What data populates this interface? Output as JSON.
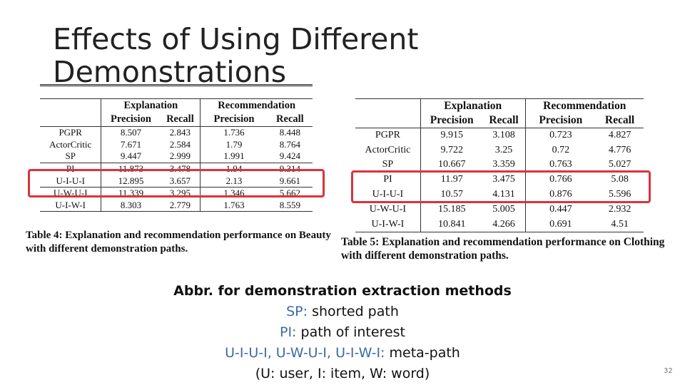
{
  "slide": {
    "title_line1": "Effects of Using Different",
    "title_line2": "Demonstrations",
    "page_number": "32"
  },
  "table_beauty": {
    "group_headers": [
      "Explanation",
      "Recommendation"
    ],
    "sub_headers": [
      "Precision",
      "Recall",
      "Precision",
      "Recall"
    ],
    "rows": [
      {
        "method": "PGPR",
        "values": [
          "8.507",
          "2.843",
          "1.736",
          "8.448"
        ]
      },
      {
        "method": "ActorCritic",
        "values": [
          "7.671",
          "2.584",
          "1.79",
          "8.764"
        ]
      },
      {
        "method": "SP",
        "values": [
          "9.447",
          "2.999",
          "1.991",
          "9.424"
        ]
      },
      {
        "method": "PI",
        "values": [
          "11.873",
          "3.478",
          "1.94",
          "9.314"
        ]
      },
      {
        "method": "U-I-U-I",
        "values": [
          "12.895",
          "3.657",
          "2.13",
          "9.661"
        ]
      },
      {
        "method": "U-W-U-I",
        "values": [
          "11.339",
          "3.295",
          "1.346",
          "5.662"
        ]
      },
      {
        "method": "U-I-W-I",
        "values": [
          "8.303",
          "2.779",
          "1.763",
          "8.559"
        ]
      }
    ],
    "caption": "Table 4: Explanation and recommendation performance on Beauty with different demonstration paths."
  },
  "table_clothing": {
    "group_headers": [
      "Explanation",
      "Recommendation"
    ],
    "sub_headers": [
      "Precision",
      "Recall",
      "Precision",
      "Recall"
    ],
    "rows": [
      {
        "method": "PGPR",
        "values": [
          "9.915",
          "3.108",
          "0.723",
          "4.827"
        ]
      },
      {
        "method": "ActorCritic",
        "values": [
          "9.722",
          "3.25",
          "0.72",
          "4.776"
        ]
      },
      {
        "method": "SP",
        "values": [
          "10.667",
          "3.359",
          "0.763",
          "5.027"
        ]
      },
      {
        "method": "PI",
        "values": [
          "11.97",
          "3.475",
          "0.766",
          "5.08"
        ]
      },
      {
        "method": "U-I-U-I",
        "values": [
          "10.57",
          "4.131",
          "0.876",
          "5.596"
        ]
      },
      {
        "method": "U-W-U-I",
        "values": [
          "15.185",
          "5.005",
          "0.447",
          "2.932"
        ]
      },
      {
        "method": "U-I-W-I",
        "values": [
          "10.841",
          "4.266",
          "0.691",
          "4.51"
        ]
      }
    ],
    "caption": "Table 5: Explanation and recommendation performance on Clothing with different demonstration paths."
  },
  "abbreviations": {
    "heading": "Abbr. for demonstration extraction methods",
    "sp_key": "SP:",
    "sp_text": " shorted path",
    "pi_key": "PI:",
    "pi_text": " path of interest",
    "meta_key": "U-I-U-I, U-W-U-I, U-I-W-I:",
    "meta_text": " meta-path",
    "legend": "(U: user, I: item, W: word)"
  },
  "colors": {
    "highlight_box": "#d8343d",
    "abbr_key": "#3d6aa3"
  }
}
